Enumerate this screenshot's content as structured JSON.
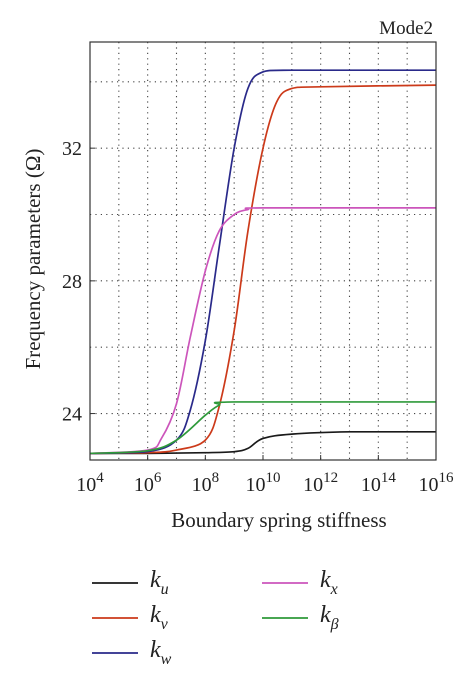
{
  "chart_data": {
    "type": "line",
    "title": "Mode2",
    "xlabel": "Boundary spring stiffness",
    "ylabel": "Frequency parameters (Ω)",
    "x_scale": "log10",
    "xlim": [
      10000,
      10000000000000000
    ],
    "ylim": [
      22.6,
      35.2
    ],
    "x_ticks": [
      {
        "value": 10000,
        "base": "10",
        "exp": "4"
      },
      {
        "value": 1000000,
        "base": "10",
        "exp": "6"
      },
      {
        "value": 100000000,
        "base": "10",
        "exp": "8"
      },
      {
        "value": 10000000000,
        "base": "10",
        "exp": "10"
      },
      {
        "value": 1000000000000,
        "base": "10",
        "exp": "12"
      },
      {
        "value": 100000000000000,
        "base": "10",
        "exp": "14"
      },
      {
        "value": 10000000000000000,
        "base": "10",
        "exp": "16"
      }
    ],
    "y_ticks": [
      {
        "value": 24,
        "label": "24"
      },
      {
        "value": 28,
        "label": "28"
      },
      {
        "value": 32,
        "label": "32"
      }
    ],
    "grid": true,
    "grid_style": "dotted",
    "legend_position": "below",
    "series": [
      {
        "name": "k",
        "subscript": "u",
        "color": "#1a1a1a",
        "points": [
          [
            10000,
            22.8
          ],
          [
            1000000,
            22.8
          ],
          [
            100000000,
            22.82
          ],
          [
            1000000000,
            22.85
          ],
          [
            3000000000,
            22.95
          ],
          [
            10000000000,
            23.25
          ],
          [
            100000000000,
            23.38
          ],
          [
            10000000000000,
            23.45
          ],
          [
            10000000000000000,
            23.45
          ]
        ]
      },
      {
        "name": "k",
        "subscript": "v",
        "color": "#cc3a1a",
        "points": [
          [
            10000,
            22.8
          ],
          [
            1000000,
            22.82
          ],
          [
            10000000,
            22.9
          ],
          [
            100000000,
            23.2
          ],
          [
            300000000,
            24.2
          ],
          [
            1000000000,
            26.5
          ],
          [
            3000000000,
            29.5
          ],
          [
            10000000000,
            32.0
          ],
          [
            30000000000,
            33.4
          ],
          [
            100000000000,
            33.8
          ],
          [
            1000000000000,
            33.85
          ],
          [
            10000000000000000,
            33.9
          ]
        ]
      },
      {
        "name": "k",
        "subscript": "w",
        "color": "#2a2a8a",
        "points": [
          [
            10000,
            22.8
          ],
          [
            1000000,
            22.85
          ],
          [
            10000000,
            23.2
          ],
          [
            30000000,
            24.1
          ],
          [
            100000000,
            26.2
          ],
          [
            300000000,
            29.0
          ],
          [
            1000000000,
            32.0
          ],
          [
            3000000000,
            33.8
          ],
          [
            10000000000,
            34.3
          ],
          [
            100000000000,
            34.35
          ],
          [
            10000000000000000,
            34.35
          ]
        ]
      },
      {
        "name": "k",
        "subscript": "x",
        "color": "#cc55bb",
        "points": [
          [
            10000,
            22.8
          ],
          [
            1000000,
            22.9
          ],
          [
            3000000,
            23.25
          ],
          [
            10000000,
            24.3
          ],
          [
            30000000,
            26.3
          ],
          [
            100000000,
            28.3
          ],
          [
            300000000,
            29.5
          ],
          [
            1000000000,
            30.0
          ],
          [
            3000000000,
            30.15
          ],
          [
            10000000000,
            30.2
          ],
          [
            10000000000000000,
            30.2
          ]
        ]
      },
      {
        "name": "k",
        "subscript": "β",
        "color": "#2e9a3a",
        "points": [
          [
            10000,
            22.8
          ],
          [
            1000000,
            22.88
          ],
          [
            10000000,
            23.2
          ],
          [
            100000000,
            23.95
          ],
          [
            300000000,
            24.25
          ],
          [
            1000000000,
            24.35
          ],
          [
            10000000000000000,
            24.35
          ]
        ]
      }
    ]
  }
}
